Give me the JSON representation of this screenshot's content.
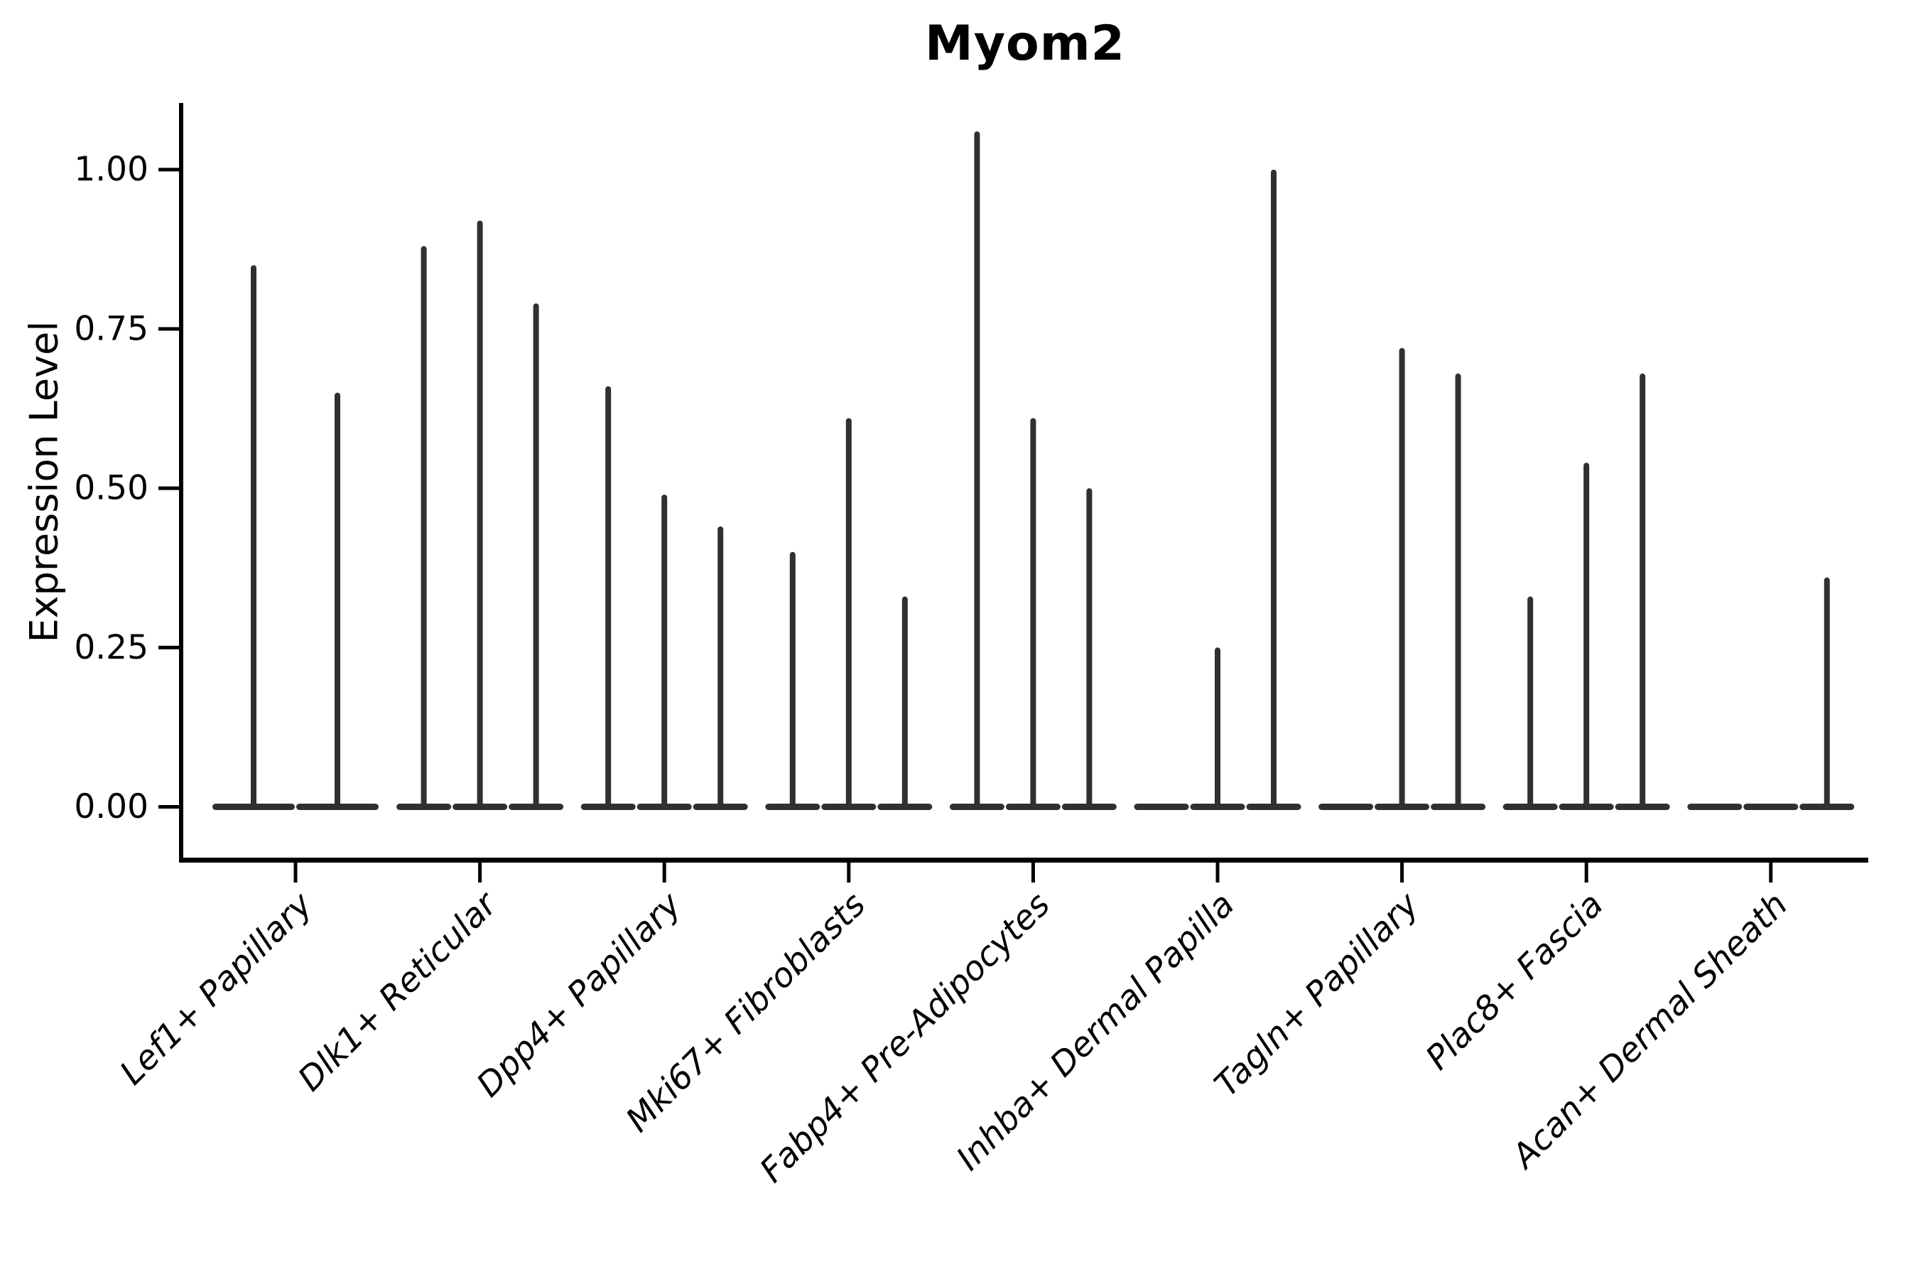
{
  "chart_data": {
    "type": "violin",
    "title": "Myom2",
    "ylabel": "Expression Level",
    "xlabel": "",
    "ylim": [
      -0.085,
      1.105
    ],
    "grid": false,
    "legend_position": "none",
    "yticks": [
      {
        "value": 0.0,
        "label": "0.00"
      },
      {
        "value": 0.25,
        "label": "0.25"
      },
      {
        "value": 0.5,
        "label": "0.50"
      },
      {
        "value": 0.75,
        "label": "0.75"
      },
      {
        "value": 1.0,
        "label": "1.00"
      }
    ],
    "categories": [
      "Lef1+ Papillary",
      "Dlk1+ Reticular",
      "Dpp4+ Papillary",
      "Mki67+ Fibroblasts",
      "Fabp4+ Pre-Adipocytes",
      "Inhba+ Dermal Papilla",
      "Tagln+ Papillary",
      "Plac8+ Fascia",
      "Acan+ Dermal Sheath"
    ],
    "groups": [
      {
        "category": "Lef1+ Papillary",
        "violin_max_values": [
          0.85,
          0.65
        ]
      },
      {
        "category": "Dlk1+ Reticular",
        "violin_max_values": [
          0.88,
          0.92,
          0.79
        ]
      },
      {
        "category": "Dpp4+ Papillary",
        "violin_max_values": [
          0.66,
          0.49,
          0.44
        ]
      },
      {
        "category": "Mki67+ Fibroblasts",
        "violin_max_values": [
          0.4,
          0.61,
          0.33
        ]
      },
      {
        "category": "Fabp4+ Pre-Adipocytes",
        "violin_max_values": [
          1.06,
          0.61,
          0.5
        ]
      },
      {
        "category": "Inhba+ Dermal Papilla",
        "violin_max_values": [
          0.0,
          0.25,
          1.0
        ]
      },
      {
        "category": "Tagln+ Papillary",
        "violin_max_values": [
          0.0,
          0.72,
          0.68
        ]
      },
      {
        "category": "Plac8+ Fascia",
        "violin_max_values": [
          0.33,
          0.54,
          0.68
        ]
      },
      {
        "category": "Acan+ Dermal Sheath",
        "violin_max_values": [
          0.0,
          0.0,
          0.36
        ]
      }
    ],
    "colors": {
      "violin": "#303030",
      "axis": "#000000",
      "text": "#000000"
    }
  }
}
